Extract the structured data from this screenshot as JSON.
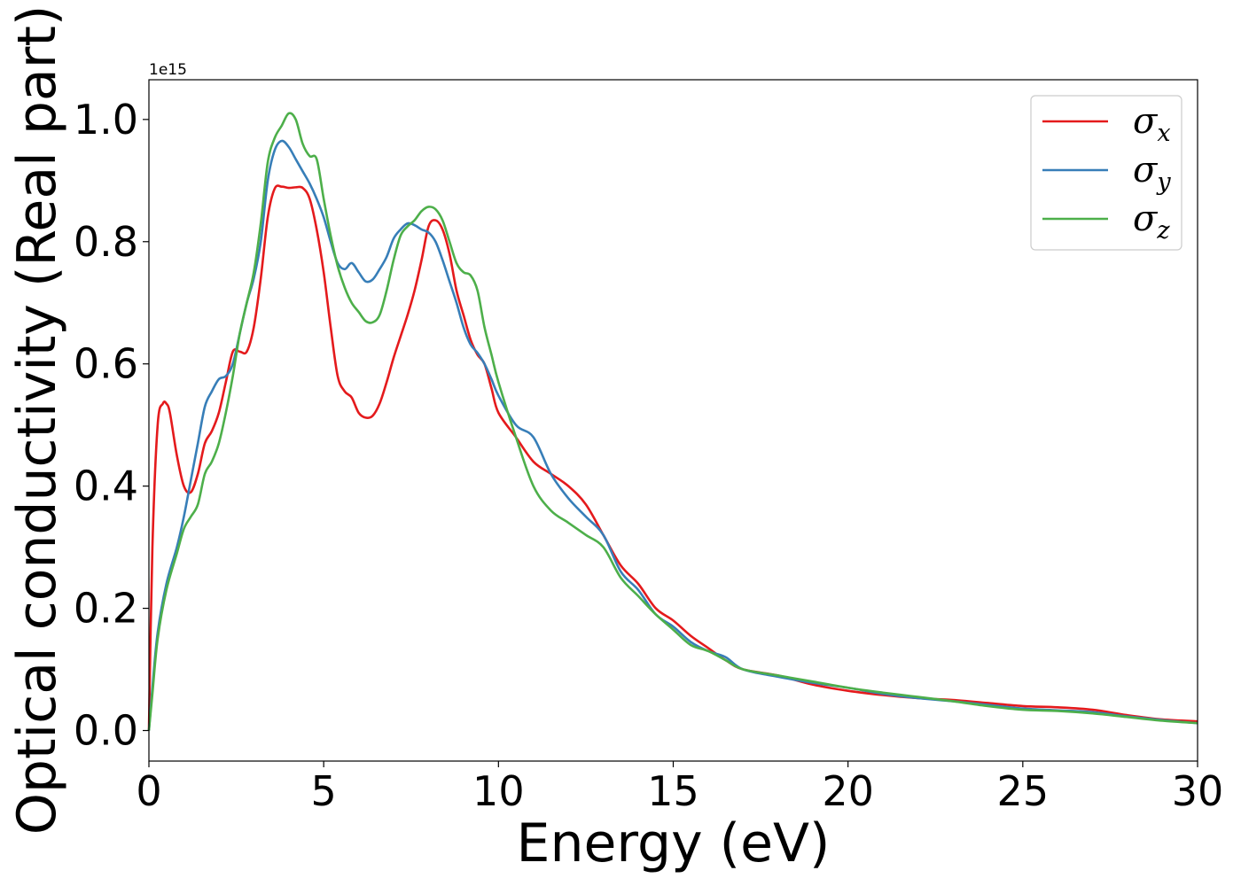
{
  "chart_data": {
    "type": "line",
    "xlabel": "Energy (eV)",
    "ylabel": "Optical conductivity (Real part)",
    "y_offset_label": "1e15",
    "xlim": [
      0,
      30
    ],
    "ylim": [
      -0.05,
      1.065
    ],
    "xticks": [
      "0",
      "5",
      "10",
      "15",
      "20",
      "25",
      "30"
    ],
    "yticks": [
      "0.0",
      "0.2",
      "0.4",
      "0.6",
      "0.8",
      "1.0"
    ],
    "grid": false,
    "legend_position": "top-right",
    "series": [
      {
        "name": "σ",
        "subscript": "x",
        "color": "#e41a1c",
        "x": [
          0,
          0.1,
          0.25,
          0.4,
          0.5,
          0.6,
          0.8,
          1.0,
          1.2,
          1.4,
          1.6,
          1.8,
          2.0,
          2.2,
          2.4,
          2.6,
          2.8,
          3.0,
          3.2,
          3.4,
          3.6,
          3.8,
          4.0,
          4.2,
          4.4,
          4.6,
          4.8,
          5.0,
          5.2,
          5.4,
          5.6,
          5.8,
          6.0,
          6.2,
          6.4,
          6.6,
          6.8,
          7.0,
          7.2,
          7.4,
          7.6,
          7.8,
          8.0,
          8.2,
          8.4,
          8.6,
          8.8,
          9.0,
          9.2,
          9.4,
          9.6,
          9.8,
          10.0,
          10.5,
          11.0,
          11.5,
          12.0,
          12.5,
          13.0,
          13.5,
          14.0,
          14.5,
          15.0,
          15.5,
          16.0,
          16.5,
          17.0,
          18.0,
          19.0,
          20.0,
          21.0,
          22.0,
          23.0,
          24.0,
          25.0,
          26.0,
          27.0,
          28.0,
          29.0,
          30.0
        ],
        "y": [
          0.0,
          0.3,
          0.5,
          0.535,
          0.535,
          0.52,
          0.45,
          0.4,
          0.39,
          0.42,
          0.47,
          0.49,
          0.52,
          0.57,
          0.62,
          0.62,
          0.62,
          0.66,
          0.74,
          0.84,
          0.887,
          0.89,
          0.888,
          0.889,
          0.888,
          0.87,
          0.82,
          0.75,
          0.66,
          0.58,
          0.555,
          0.545,
          0.52,
          0.512,
          0.515,
          0.535,
          0.57,
          0.61,
          0.645,
          0.68,
          0.72,
          0.77,
          0.825,
          0.835,
          0.82,
          0.78,
          0.72,
          0.68,
          0.64,
          0.615,
          0.6,
          0.56,
          0.52,
          0.48,
          0.44,
          0.42,
          0.4,
          0.37,
          0.32,
          0.27,
          0.24,
          0.2,
          0.18,
          0.155,
          0.135,
          0.115,
          0.1,
          0.09,
          0.075,
          0.065,
          0.058,
          0.053,
          0.05,
          0.045,
          0.04,
          0.038,
          0.034,
          0.025,
          0.018,
          0.015
        ]
      },
      {
        "name": "σ",
        "subscript": "y",
        "color": "#377eb8",
        "x": [
          0,
          0.1,
          0.25,
          0.5,
          0.8,
          1.0,
          1.2,
          1.4,
          1.6,
          1.8,
          2.0,
          2.2,
          2.4,
          2.6,
          2.8,
          3.0,
          3.2,
          3.4,
          3.6,
          3.8,
          4.0,
          4.2,
          4.4,
          4.6,
          4.8,
          5.0,
          5.2,
          5.4,
          5.6,
          5.8,
          6.0,
          6.2,
          6.4,
          6.6,
          6.8,
          7.0,
          7.2,
          7.4,
          7.6,
          7.8,
          8.0,
          8.2,
          8.4,
          8.6,
          8.8,
          9.0,
          9.2,
          9.4,
          9.6,
          9.8,
          10.0,
          10.5,
          11.0,
          11.5,
          12.0,
          12.5,
          13.0,
          13.5,
          14.0,
          14.5,
          15.0,
          15.5,
          16.0,
          16.5,
          17.0,
          18.0,
          19.0,
          20.0,
          21.0,
          22.0,
          23.0,
          24.0,
          25.0,
          26.0,
          27.0,
          28.0,
          29.0,
          30.0
        ],
        "y": [
          0.0,
          0.07,
          0.16,
          0.24,
          0.3,
          0.35,
          0.41,
          0.47,
          0.53,
          0.555,
          0.575,
          0.58,
          0.6,
          0.65,
          0.7,
          0.74,
          0.8,
          0.9,
          0.95,
          0.965,
          0.955,
          0.935,
          0.915,
          0.895,
          0.87,
          0.84,
          0.8,
          0.765,
          0.755,
          0.765,
          0.75,
          0.735,
          0.738,
          0.755,
          0.775,
          0.805,
          0.82,
          0.83,
          0.827,
          0.82,
          0.815,
          0.8,
          0.77,
          0.735,
          0.7,
          0.66,
          0.632,
          0.618,
          0.6,
          0.575,
          0.548,
          0.5,
          0.48,
          0.42,
          0.38,
          0.35,
          0.32,
          0.26,
          0.23,
          0.19,
          0.17,
          0.145,
          0.13,
          0.12,
          0.1,
          0.088,
          0.078,
          0.07,
          0.06,
          0.053,
          0.048,
          0.042,
          0.036,
          0.033,
          0.03,
          0.023,
          0.017,
          0.012
        ]
      },
      {
        "name": "σ",
        "subscript": "z",
        "color": "#4daf4a",
        "x": [
          0,
          0.1,
          0.25,
          0.5,
          0.8,
          1.0,
          1.2,
          1.4,
          1.6,
          1.8,
          2.0,
          2.2,
          2.4,
          2.6,
          2.8,
          3.0,
          3.2,
          3.4,
          3.6,
          3.8,
          4.0,
          4.2,
          4.4,
          4.6,
          4.8,
          5.0,
          5.2,
          5.4,
          5.6,
          5.8,
          6.0,
          6.2,
          6.4,
          6.6,
          6.8,
          7.0,
          7.2,
          7.4,
          7.6,
          7.8,
          8.0,
          8.2,
          8.4,
          8.6,
          8.8,
          9.0,
          9.2,
          9.4,
          9.6,
          9.8,
          10.0,
          10.5,
          11.0,
          11.5,
          12.0,
          12.5,
          13.0,
          13.5,
          14.0,
          14.5,
          15.0,
          15.5,
          16.0,
          16.5,
          17.0,
          18.0,
          19.0,
          20.0,
          21.0,
          22.0,
          23.0,
          24.0,
          25.0,
          26.0,
          27.0,
          28.0,
          29.0,
          30.0
        ],
        "y": [
          0.0,
          0.06,
          0.15,
          0.23,
          0.29,
          0.33,
          0.35,
          0.37,
          0.42,
          0.44,
          0.47,
          0.52,
          0.58,
          0.65,
          0.7,
          0.75,
          0.83,
          0.93,
          0.97,
          0.99,
          1.01,
          1.0,
          0.96,
          0.94,
          0.935,
          0.87,
          0.81,
          0.76,
          0.725,
          0.7,
          0.685,
          0.67,
          0.668,
          0.68,
          0.72,
          0.77,
          0.81,
          0.825,
          0.835,
          0.85,
          0.857,
          0.853,
          0.835,
          0.8,
          0.765,
          0.75,
          0.745,
          0.72,
          0.66,
          0.615,
          0.57,
          0.48,
          0.4,
          0.36,
          0.34,
          0.32,
          0.3,
          0.25,
          0.22,
          0.19,
          0.165,
          0.14,
          0.13,
          0.115,
          0.1,
          0.09,
          0.08,
          0.07,
          0.062,
          0.055,
          0.048,
          0.04,
          0.034,
          0.032,
          0.028,
          0.022,
          0.016,
          0.012
        ]
      }
    ]
  }
}
